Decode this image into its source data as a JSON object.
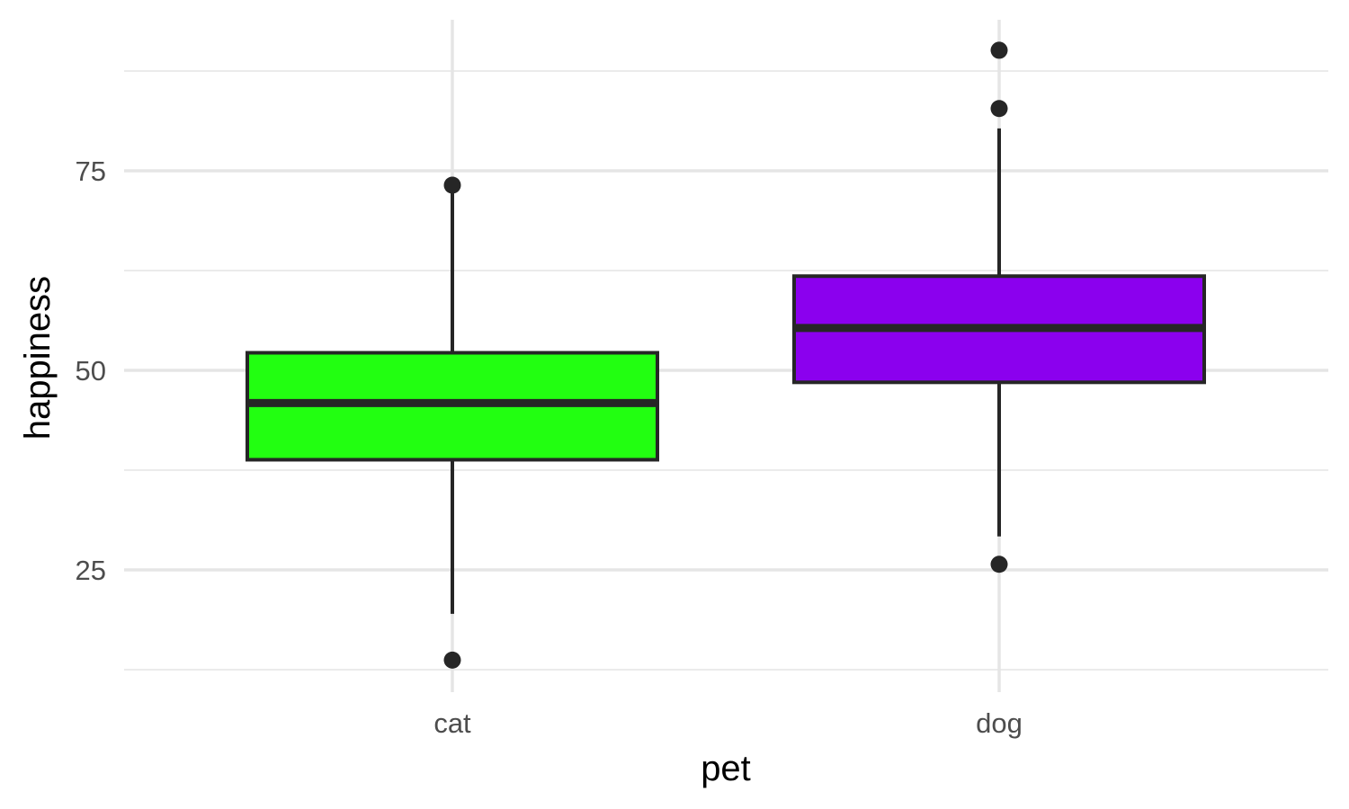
{
  "chart_data": {
    "type": "box",
    "title": "",
    "xlabel": "pet",
    "ylabel": "happiness",
    "ylim": [
      11.5,
      91.5
    ],
    "y_ticks": [
      25,
      50,
      75
    ],
    "y_minor_ticks": [
      12.5,
      37.5,
      62.5,
      87.5
    ],
    "grid": true,
    "categories": [
      "cat",
      "dog"
    ],
    "boxes": [
      {
        "category": "cat",
        "q1": 38.8,
        "median": 45.9,
        "q3": 52.2,
        "whisker_low": 19.5,
        "whisker_high": 73.0,
        "outliers": [
          13.7,
          73.2
        ],
        "color": "#22ff11"
      },
      {
        "category": "dog",
        "q1": 48.5,
        "median": 55.3,
        "q3": 61.8,
        "whisker_low": 29.2,
        "whisker_high": 80.3,
        "outliers": [
          25.7,
          82.8,
          90.1
        ],
        "color": "#8b00ee"
      }
    ]
  }
}
